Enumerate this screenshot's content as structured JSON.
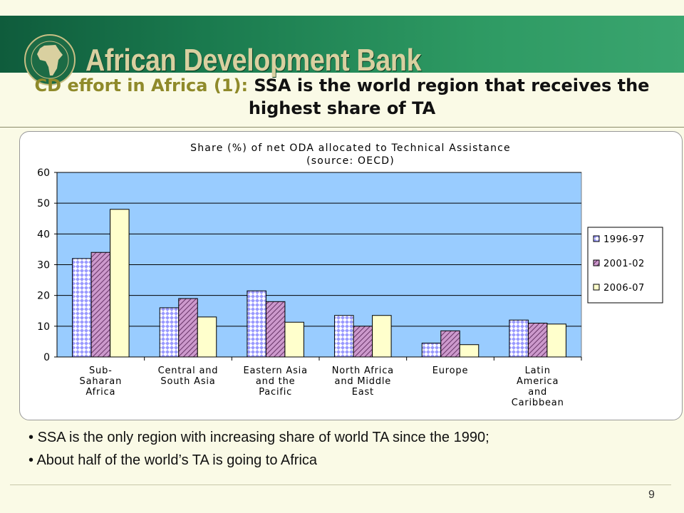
{
  "header": {
    "bank_name": "African Development Bank"
  },
  "slide": {
    "title_part1": "CD effort in Africa (1): ",
    "title_part2": "SSA is the world region that receives the highest share of TA",
    "bullets": [
      "SSA is the only region with increasing share of world TA since the 1990;",
      "About half of the world’s TA is going to Africa"
    ],
    "page_number": "9"
  },
  "chart_data": {
    "type": "bar",
    "title_line1": "Share (%) of net ODA allocated to Technical Assistance",
    "title_line2": "(source: OECD)",
    "categories": [
      [
        "Sub-",
        "Saharan",
        "Africa"
      ],
      [
        "Central and",
        "South Asia"
      ],
      [
        "Eastern Asia",
        "and the",
        "Pacific"
      ],
      [
        "North Africa",
        "and Middle",
        "East"
      ],
      [
        "Europe"
      ],
      [
        "Latin",
        "America",
        "and",
        "Caribbean"
      ]
    ],
    "series": [
      {
        "name": "1996-97",
        "values": [
          32,
          16,
          21.5,
          13.5,
          4.5,
          12
        ],
        "color": "#ffffff",
        "pattern": "diamond"
      },
      {
        "name": "2001-02",
        "values": [
          34,
          19,
          18,
          10,
          8.5,
          11
        ],
        "color": "#cc99cc",
        "pattern": "hatch"
      },
      {
        "name": "2006-07",
        "values": [
          48,
          13,
          11.3,
          13.5,
          4,
          10.7
        ],
        "color": "#ffffcc",
        "pattern": "solid"
      }
    ],
    "ylim": [
      0,
      60
    ],
    "yticks": [
      0,
      10,
      20,
      30,
      40,
      50,
      60
    ],
    "grid": true,
    "plot_background": "#99ccff",
    "legend_position": "right"
  }
}
